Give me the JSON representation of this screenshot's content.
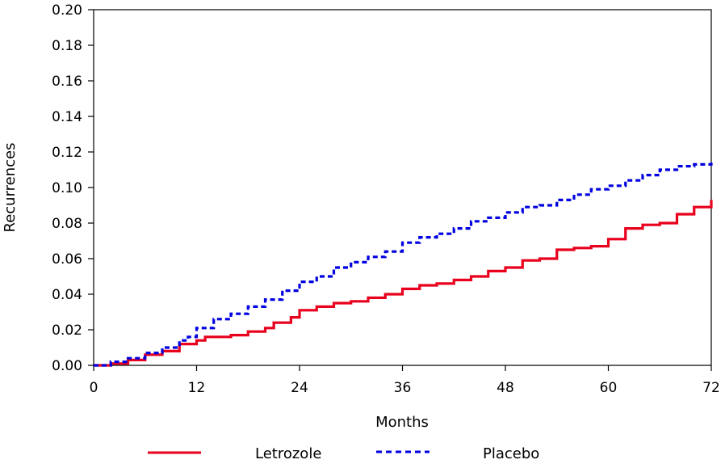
{
  "chart_data": {
    "type": "line",
    "title": "",
    "xlabel": "Months",
    "ylabel": "Recurrences",
    "xlim": [
      0,
      72
    ],
    "ylim": [
      0,
      0.2
    ],
    "x_ticks": [
      "0",
      "12",
      "24",
      "36",
      "48",
      "60",
      "72"
    ],
    "y_ticks": [
      "0.00",
      "0.02",
      "0.04",
      "0.06",
      "0.08",
      "0.10",
      "0.12",
      "0.14",
      "0.16",
      "0.18",
      "0.20"
    ],
    "grid": false,
    "legend_position": "bottom",
    "series": [
      {
        "name": "Letrozole",
        "color": "#e8001c",
        "style": "solid",
        "points": [
          [
            0,
            0.0
          ],
          [
            2,
            0.001
          ],
          [
            4,
            0.003
          ],
          [
            6,
            0.006
          ],
          [
            8,
            0.008
          ],
          [
            10,
            0.012
          ],
          [
            12,
            0.014
          ],
          [
            13,
            0.016
          ],
          [
            15,
            0.016
          ],
          [
            16,
            0.017
          ],
          [
            18,
            0.019
          ],
          [
            20,
            0.021
          ],
          [
            21,
            0.024
          ],
          [
            23,
            0.027
          ],
          [
            24,
            0.031
          ],
          [
            26,
            0.033
          ],
          [
            28,
            0.035
          ],
          [
            30,
            0.036
          ],
          [
            32,
            0.038
          ],
          [
            34,
            0.04
          ],
          [
            36,
            0.043
          ],
          [
            38,
            0.045
          ],
          [
            40,
            0.046
          ],
          [
            42,
            0.048
          ],
          [
            44,
            0.05
          ],
          [
            46,
            0.053
          ],
          [
            48,
            0.055
          ],
          [
            50,
            0.059
          ],
          [
            52,
            0.06
          ],
          [
            54,
            0.065
          ],
          [
            56,
            0.066
          ],
          [
            58,
            0.067
          ],
          [
            60,
            0.071
          ],
          [
            62,
            0.077
          ],
          [
            64,
            0.079
          ],
          [
            66,
            0.08
          ],
          [
            68,
            0.085
          ],
          [
            70,
            0.089
          ],
          [
            72,
            0.093
          ]
        ]
      },
      {
        "name": "Placebo",
        "color": "#0000e0",
        "style": "dashed",
        "points": [
          [
            0,
            0.0
          ],
          [
            2,
            0.002
          ],
          [
            4,
            0.004
          ],
          [
            6,
            0.007
          ],
          [
            8,
            0.01
          ],
          [
            10,
            0.014
          ],
          [
            11,
            0.016
          ],
          [
            12,
            0.021
          ],
          [
            14,
            0.026
          ],
          [
            16,
            0.029
          ],
          [
            18,
            0.033
          ],
          [
            20,
            0.037
          ],
          [
            22,
            0.042
          ],
          [
            24,
            0.047
          ],
          [
            26,
            0.05
          ],
          [
            28,
            0.055
          ],
          [
            30,
            0.058
          ],
          [
            32,
            0.061
          ],
          [
            34,
            0.064
          ],
          [
            36,
            0.069
          ],
          [
            38,
            0.072
          ],
          [
            40,
            0.074
          ],
          [
            42,
            0.077
          ],
          [
            44,
            0.081
          ],
          [
            46,
            0.083
          ],
          [
            48,
            0.086
          ],
          [
            50,
            0.089
          ],
          [
            52,
            0.09
          ],
          [
            54,
            0.093
          ],
          [
            56,
            0.096
          ],
          [
            58,
            0.099
          ],
          [
            60,
            0.101
          ],
          [
            62,
            0.104
          ],
          [
            64,
            0.107
          ],
          [
            66,
            0.11
          ],
          [
            68,
            0.112
          ],
          [
            70,
            0.113
          ],
          [
            72,
            0.114
          ]
        ]
      }
    ]
  }
}
